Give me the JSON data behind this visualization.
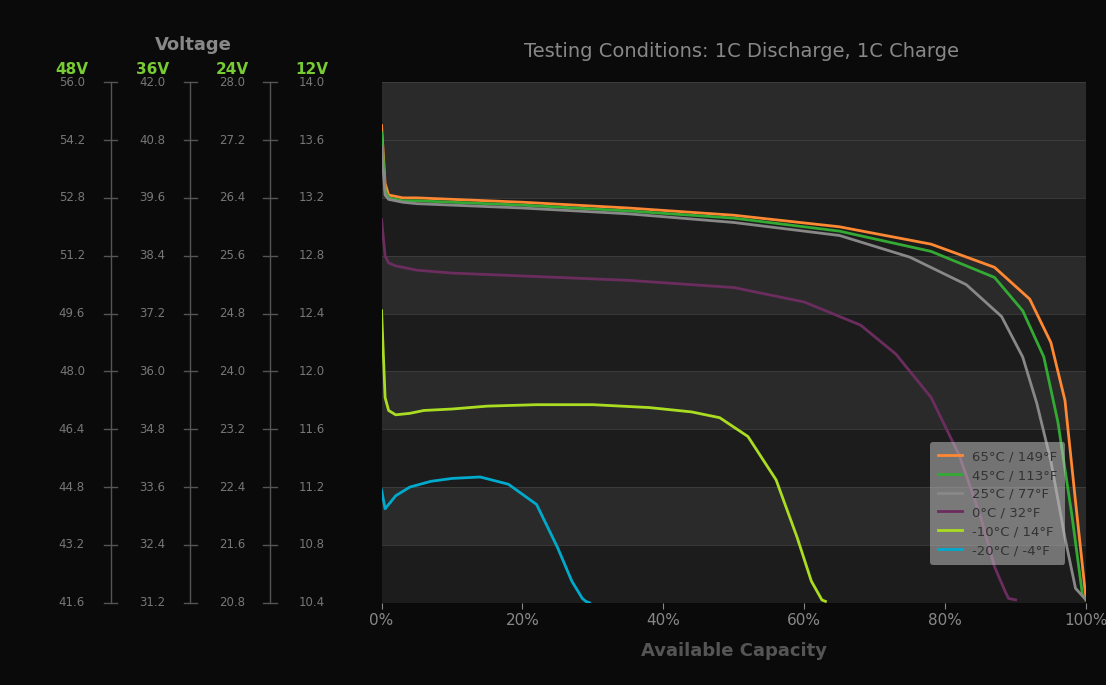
{
  "title": "Testing Conditions: 1C Discharge, 1C Charge",
  "xlabel": "Available Capacity",
  "voltage_label": "Voltage",
  "voltage_headers": [
    "48V",
    "36V",
    "24V",
    "12V"
  ],
  "y_ticks_48v": [
    56.0,
    54.2,
    52.8,
    51.2,
    49.6,
    48.0,
    46.4,
    44.8,
    43.2,
    41.6
  ],
  "y_ticks_36v": [
    42.0,
    40.8,
    39.6,
    38.4,
    37.2,
    36.0,
    34.8,
    33.6,
    32.4,
    31.2
  ],
  "y_ticks_24v": [
    28.0,
    27.2,
    26.4,
    25.6,
    24.8,
    24.0,
    23.2,
    22.4,
    21.6,
    20.8
  ],
  "y_ticks_12v": [
    14.0,
    13.6,
    13.2,
    12.8,
    12.4,
    12.0,
    11.6,
    11.2,
    10.8,
    10.4
  ],
  "background_color": "#0a0a0a",
  "voltage_header_color": "#77cc33",
  "tick_color": "#777777",
  "xlabel_color": "#555555",
  "title_color": "#888888",
  "stripe_colors": [
    "#1c1c1c",
    "#2a2a2a"
  ],
  "lines": [
    {
      "label": "65°C / 149°F",
      "color": "#ff8833",
      "x": [
        0,
        0.5,
        1,
        2,
        3,
        5,
        10,
        20,
        35,
        50,
        65,
        78,
        87,
        92,
        95,
        97,
        98.5,
        100
      ],
      "y": [
        13.7,
        13.3,
        13.22,
        13.21,
        13.2,
        13.2,
        13.19,
        13.17,
        13.13,
        13.08,
        13.0,
        12.88,
        12.72,
        12.5,
        12.2,
        11.8,
        11.1,
        10.42
      ]
    },
    {
      "label": "45°C / 113°F",
      "color": "#33aa33",
      "x": [
        0,
        0.5,
        1,
        2,
        3,
        5,
        10,
        20,
        35,
        50,
        65,
        78,
        87,
        91,
        94,
        96,
        98,
        99.5,
        100
      ],
      "y": [
        13.65,
        13.25,
        13.2,
        13.19,
        13.18,
        13.18,
        13.17,
        13.15,
        13.11,
        13.06,
        12.97,
        12.83,
        12.65,
        12.42,
        12.1,
        11.65,
        11.0,
        10.45,
        10.42
      ]
    },
    {
      "label": "25°C / 77°F",
      "color": "#888888",
      "x": [
        0,
        0.5,
        1,
        2,
        3,
        5,
        10,
        20,
        35,
        50,
        65,
        75,
        83,
        88,
        91,
        93,
        95,
        97,
        98.5,
        100
      ],
      "y": [
        13.55,
        13.22,
        13.19,
        13.18,
        13.17,
        13.16,
        13.15,
        13.13,
        13.09,
        13.03,
        12.94,
        12.79,
        12.6,
        12.38,
        12.1,
        11.78,
        11.38,
        10.85,
        10.5,
        10.42
      ]
    },
    {
      "label": "0°C / 32°F",
      "color": "#6b2d5e",
      "x": [
        0,
        0.5,
        1,
        2,
        3,
        5,
        10,
        20,
        35,
        50,
        60,
        68,
        73,
        78,
        82,
        85,
        87,
        88.5,
        89,
        90
      ],
      "y": [
        13.05,
        12.8,
        12.75,
        12.73,
        12.72,
        12.7,
        12.68,
        12.66,
        12.63,
        12.58,
        12.48,
        12.32,
        12.12,
        11.82,
        11.42,
        11.0,
        10.65,
        10.48,
        10.43,
        10.42
      ]
    },
    {
      "label": "-10°C / 14°F",
      "color": "#aadd22",
      "x": [
        0,
        0.5,
        1,
        2,
        4,
        6,
        10,
        15,
        22,
        30,
        38,
        44,
        48,
        52,
        56,
        59,
        61,
        62.5,
        63
      ],
      "y": [
        12.42,
        11.82,
        11.73,
        11.7,
        11.71,
        11.73,
        11.74,
        11.76,
        11.77,
        11.77,
        11.75,
        11.72,
        11.68,
        11.55,
        11.25,
        10.85,
        10.55,
        10.42,
        10.41
      ]
    },
    {
      "label": "-20°C / -4°F",
      "color": "#00aacc",
      "x": [
        0,
        0.5,
        1,
        2,
        4,
        7,
        10,
        14,
        18,
        22,
        25,
        27,
        28.5,
        29,
        29.5
      ],
      "y": [
        11.18,
        11.05,
        11.08,
        11.14,
        11.2,
        11.24,
        11.26,
        11.27,
        11.22,
        11.08,
        10.78,
        10.55,
        10.43,
        10.41,
        10.4
      ]
    }
  ]
}
